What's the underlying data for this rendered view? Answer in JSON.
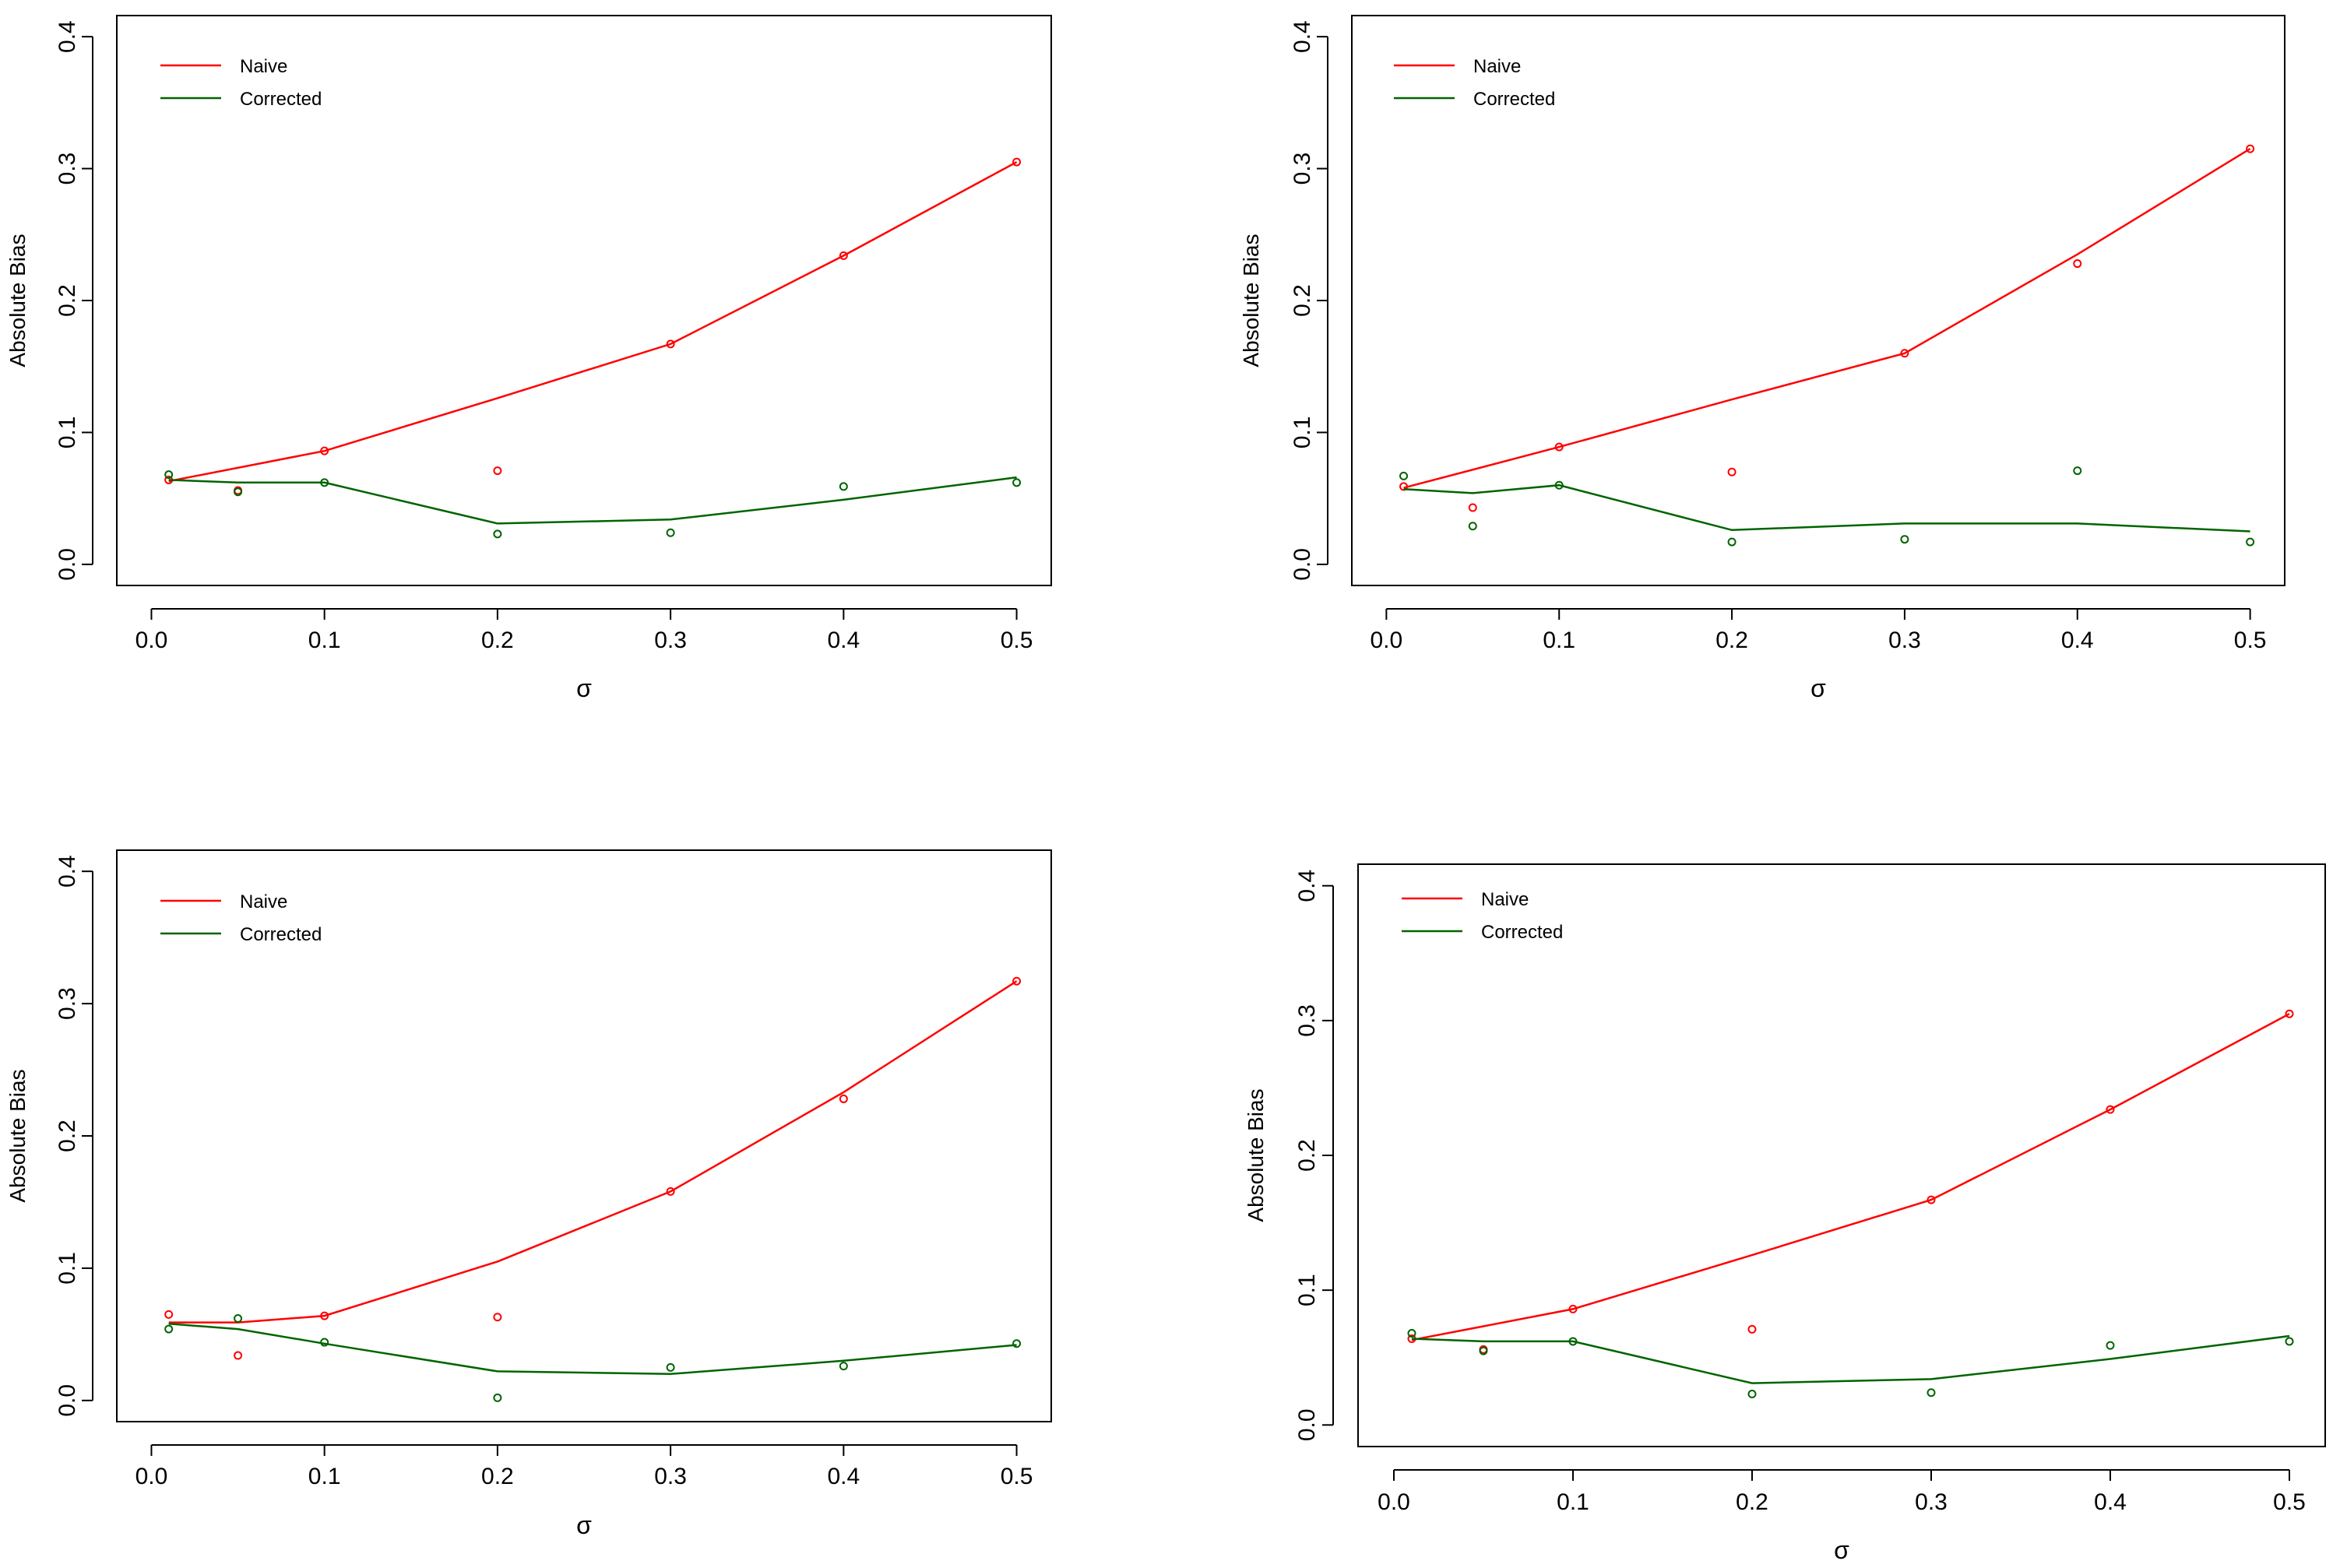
{
  "colors": {
    "naive": "#ff0000",
    "corrected": "#006400",
    "axis": "#000000",
    "background": "#ffffff"
  },
  "chart_data": [
    {
      "type": "scatter+line",
      "title": "",
      "xlabel": "σ",
      "ylabel": "Absolute Bias",
      "xlim": [
        0.0,
        0.5
      ],
      "ylim": [
        0.0,
        0.4
      ],
      "x_ticks": [
        "0.0",
        "0.1",
        "0.2",
        "0.3",
        "0.4",
        "0.5"
      ],
      "y_ticks": [
        "0.0",
        "0.1",
        "0.2",
        "0.3",
        "0.4"
      ],
      "legend": {
        "position": "top-left",
        "entries": [
          "Naive",
          "Corrected"
        ]
      },
      "series": [
        {
          "name": "Naive",
          "color": "#ff0000",
          "points": [
            [
              0.01,
              0.064
            ],
            [
              0.05,
              0.056
            ],
            [
              0.1,
              0.086
            ],
            [
              0.2,
              0.071
            ],
            [
              0.3,
              0.167
            ],
            [
              0.4,
              0.234
            ],
            [
              0.5,
              0.305
            ]
          ],
          "line": [
            [
              0.01,
              0.063
            ],
            [
              0.1,
              0.086
            ],
            [
              0.2,
              0.126
            ],
            [
              0.3,
              0.167
            ],
            [
              0.4,
              0.234
            ],
            [
              0.5,
              0.305
            ]
          ]
        },
        {
          "name": "Corrected",
          "color": "#006400",
          "points": [
            [
              0.01,
              0.068
            ],
            [
              0.05,
              0.055
            ],
            [
              0.1,
              0.062
            ],
            [
              0.2,
              0.023
            ],
            [
              0.3,
              0.024
            ],
            [
              0.4,
              0.059
            ],
            [
              0.5,
              0.062
            ]
          ],
          "line": [
            [
              0.01,
              0.064
            ],
            [
              0.05,
              0.062
            ],
            [
              0.1,
              0.062
            ],
            [
              0.2,
              0.031
            ],
            [
              0.3,
              0.034
            ],
            [
              0.4,
              0.049
            ],
            [
              0.5,
              0.066
            ]
          ]
        }
      ]
    },
    {
      "type": "scatter+line",
      "title": "",
      "xlabel": "σ",
      "ylabel": "Absolute Bias",
      "xlim": [
        0.0,
        0.5
      ],
      "ylim": [
        0.0,
        0.4
      ],
      "x_ticks": [
        "0.0",
        "0.1",
        "0.2",
        "0.3",
        "0.4",
        "0.5"
      ],
      "y_ticks": [
        "0.0",
        "0.1",
        "0.2",
        "0.3",
        "0.4"
      ],
      "legend": {
        "position": "top-left",
        "entries": [
          "Naive",
          "Corrected"
        ]
      },
      "series": [
        {
          "name": "Naive",
          "color": "#ff0000",
          "points": [
            [
              0.01,
              0.059
            ],
            [
              0.05,
              0.043
            ],
            [
              0.1,
              0.089
            ],
            [
              0.2,
              0.07
            ],
            [
              0.3,
              0.16
            ],
            [
              0.4,
              0.228
            ],
            [
              0.5,
              0.315
            ]
          ],
          "line": [
            [
              0.01,
              0.058
            ],
            [
              0.1,
              0.089
            ],
            [
              0.2,
              0.125
            ],
            [
              0.3,
              0.16
            ],
            [
              0.4,
              0.235
            ],
            [
              0.5,
              0.315
            ]
          ]
        },
        {
          "name": "Corrected",
          "color": "#006400",
          "points": [
            [
              0.01,
              0.067
            ],
            [
              0.05,
              0.029
            ],
            [
              0.1,
              0.06
            ],
            [
              0.2,
              0.017
            ],
            [
              0.3,
              0.019
            ],
            [
              0.4,
              0.071
            ],
            [
              0.5,
              0.017
            ]
          ],
          "line": [
            [
              0.01,
              0.057
            ],
            [
              0.05,
              0.054
            ],
            [
              0.1,
              0.06
            ],
            [
              0.2,
              0.026
            ],
            [
              0.3,
              0.031
            ],
            [
              0.4,
              0.031
            ],
            [
              0.5,
              0.025
            ]
          ]
        }
      ]
    },
    {
      "type": "scatter+line",
      "title": "",
      "xlabel": "σ",
      "ylabel": "Absolute Bias",
      "xlim": [
        0.0,
        0.5
      ],
      "ylim": [
        0.0,
        0.4
      ],
      "x_ticks": [
        "0.0",
        "0.1",
        "0.2",
        "0.3",
        "0.4",
        "0.5"
      ],
      "y_ticks": [
        "0.0",
        "0.1",
        "0.2",
        "0.3",
        "0.4"
      ],
      "legend": {
        "position": "top-left",
        "entries": [
          "Naive",
          "Corrected"
        ]
      },
      "series": [
        {
          "name": "Naive",
          "color": "#ff0000",
          "points": [
            [
              0.01,
              0.065
            ],
            [
              0.05,
              0.034
            ],
            [
              0.1,
              0.064
            ],
            [
              0.2,
              0.063
            ],
            [
              0.3,
              0.158
            ],
            [
              0.4,
              0.228
            ],
            [
              0.5,
              0.317
            ]
          ],
          "line": [
            [
              0.01,
              0.059
            ],
            [
              0.05,
              0.059
            ],
            [
              0.1,
              0.064
            ],
            [
              0.2,
              0.105
            ],
            [
              0.3,
              0.158
            ],
            [
              0.4,
              0.233
            ],
            [
              0.5,
              0.317
            ]
          ]
        },
        {
          "name": "Corrected",
          "color": "#006400",
          "points": [
            [
              0.01,
              0.054
            ],
            [
              0.05,
              0.062
            ],
            [
              0.1,
              0.044
            ],
            [
              0.2,
              0.002
            ],
            [
              0.3,
              0.025
            ],
            [
              0.4,
              0.026
            ],
            [
              0.5,
              0.043
            ]
          ],
          "line": [
            [
              0.01,
              0.058
            ],
            [
              0.05,
              0.054
            ],
            [
              0.1,
              0.043
            ],
            [
              0.2,
              0.022
            ],
            [
              0.3,
              0.02
            ],
            [
              0.4,
              0.03
            ],
            [
              0.5,
              0.042
            ]
          ]
        }
      ]
    },
    {
      "type": "scatter+line",
      "title": "",
      "xlabel": "σ",
      "ylabel": "Absolute Bias",
      "xlim": [
        0.0,
        0.5
      ],
      "ylim": [
        0.0,
        0.4
      ],
      "x_ticks": [
        "0.0",
        "0.1",
        "0.2",
        "0.3",
        "0.4",
        "0.5"
      ],
      "y_ticks": [
        "0.0",
        "0.1",
        "0.2",
        "0.3",
        "0.4"
      ],
      "legend": {
        "position": "top-left",
        "entries": [
          "Naive",
          "Corrected"
        ]
      },
      "series": [
        {
          "name": "Naive",
          "color": "#ff0000",
          "points": [
            [
              0.01,
              0.064
            ],
            [
              0.05,
              0.056
            ],
            [
              0.1,
              0.086
            ],
            [
              0.2,
              0.071
            ],
            [
              0.3,
              0.167
            ],
            [
              0.4,
              0.234
            ],
            [
              0.5,
              0.305
            ]
          ],
          "line": [
            [
              0.01,
              0.063
            ],
            [
              0.1,
              0.086
            ],
            [
              0.2,
              0.126
            ],
            [
              0.3,
              0.167
            ],
            [
              0.4,
              0.234
            ],
            [
              0.5,
              0.305
            ]
          ]
        },
        {
          "name": "Corrected",
          "color": "#006400",
          "points": [
            [
              0.01,
              0.068
            ],
            [
              0.05,
              0.055
            ],
            [
              0.1,
              0.062
            ],
            [
              0.2,
              0.023
            ],
            [
              0.3,
              0.024
            ],
            [
              0.4,
              0.059
            ],
            [
              0.5,
              0.062
            ]
          ],
          "line": [
            [
              0.01,
              0.064
            ],
            [
              0.05,
              0.062
            ],
            [
              0.1,
              0.062
            ],
            [
              0.2,
              0.031
            ],
            [
              0.3,
              0.034
            ],
            [
              0.4,
              0.049
            ],
            [
              0.5,
              0.066
            ]
          ]
        }
      ]
    }
  ]
}
